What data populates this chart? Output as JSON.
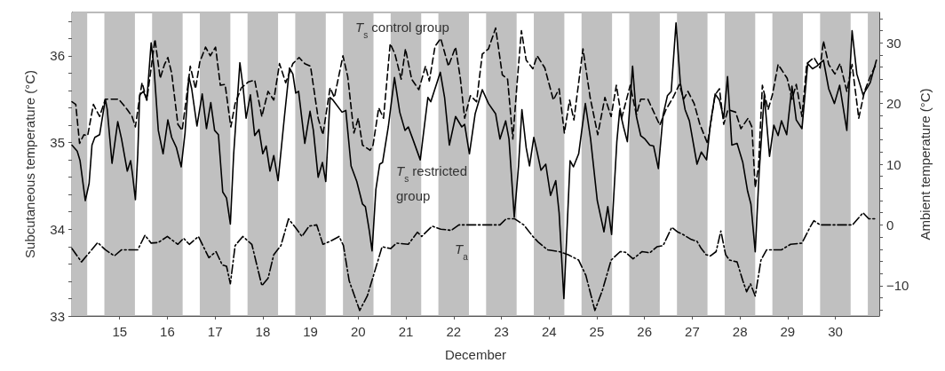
{
  "chart_data": {
    "type": "line",
    "xlabel": "December",
    "ylabel": "Subcutaneous temperature (°C)",
    "y2label": "Ambient temperature (°C)",
    "xlim": [
      14,
      30.92
    ],
    "xticks": [
      15,
      16,
      17,
      18,
      19,
      20,
      21,
      22,
      23,
      24,
      25,
      26,
      27,
      28,
      29,
      30
    ],
    "ylim": [
      33,
      36.5
    ],
    "yticks": [
      33,
      {
        "value": 33.2,
        "label": null
      },
      {
        "value": 33.4,
        "label": null
      },
      {
        "value": 33.6,
        "label": null
      },
      {
        "value": 33.8,
        "label": null
      },
      34,
      {
        "value": 34.2,
        "label": null
      },
      {
        "value": 34.4,
        "label": null
      },
      {
        "value": 34.6,
        "label": null
      },
      {
        "value": 34.8,
        "label": null
      },
      35,
      {
        "value": 35.2,
        "label": null
      },
      {
        "value": 35.4,
        "label": null
      },
      {
        "value": 35.6,
        "label": null
      },
      {
        "value": 35.8,
        "label": null
      },
      36,
      {
        "value": 36.2,
        "label": null
      },
      {
        "value": 36.4,
        "label": null
      }
    ],
    "y2lim": [
      -15,
      35
    ],
    "y2ticks": [
      {
        "value": -14,
        "label": null
      },
      {
        "value": -12,
        "label": null
      },
      {
        "value": -10,
        "label": "−10"
      },
      {
        "value": -8,
        "label": null
      },
      {
        "value": -6,
        "label": null
      },
      {
        "value": -4,
        "label": null
      },
      {
        "value": -2,
        "label": null
      },
      0,
      {
        "value": 2,
        "label": null
      },
      {
        "value": 4,
        "label": null
      },
      {
        "value": 6,
        "label": null
      },
      {
        "value": 8,
        "label": null
      },
      10,
      {
        "value": 12,
        "label": null
      },
      {
        "value": 14,
        "label": null
      },
      {
        "value": 16,
        "label": null
      },
      {
        "value": 18,
        "label": null
      },
      20,
      {
        "value": 22,
        "label": null
      },
      {
        "value": 24,
        "label": null
      },
      {
        "value": 26,
        "label": null
      },
      {
        "value": 28,
        "label": null
      },
      30,
      {
        "value": 32,
        "label": null
      },
      {
        "value": 34,
        "label": null
      }
    ],
    "grid": false,
    "bands": [
      {
        "axis": "x",
        "from": 14,
        "to": 14.32,
        "color": "#c0c0c0"
      },
      {
        "axis": "x",
        "from": 14.68,
        "to": 15.32,
        "color": "#c0c0c0"
      },
      {
        "axis": "x",
        "from": 15.68,
        "to": 16.32,
        "color": "#c0c0c0"
      },
      {
        "axis": "x",
        "from": 16.68,
        "to": 17.32,
        "color": "#c0c0c0"
      },
      {
        "axis": "x",
        "from": 17.68,
        "to": 18.32,
        "color": "#c0c0c0"
      },
      {
        "axis": "x",
        "from": 18.68,
        "to": 19.32,
        "color": "#c0c0c0"
      },
      {
        "axis": "x",
        "from": 19.68,
        "to": 20.32,
        "color": "#c0c0c0"
      },
      {
        "axis": "x",
        "from": 20.68,
        "to": 21.32,
        "color": "#c0c0c0"
      },
      {
        "axis": "x",
        "from": 21.68,
        "to": 22.32,
        "color": "#c0c0c0"
      },
      {
        "axis": "x",
        "from": 22.68,
        "to": 23.32,
        "color": "#c0c0c0"
      },
      {
        "axis": "x",
        "from": 23.68,
        "to": 24.32,
        "color": "#c0c0c0"
      },
      {
        "axis": "x",
        "from": 24.68,
        "to": 25.32,
        "color": "#c0c0c0"
      },
      {
        "axis": "x",
        "from": 25.68,
        "to": 26.32,
        "color": "#c0c0c0"
      },
      {
        "axis": "x",
        "from": 26.68,
        "to": 27.32,
        "color": "#c0c0c0"
      },
      {
        "axis": "x",
        "from": 27.68,
        "to": 28.32,
        "color": "#c0c0c0"
      },
      {
        "axis": "x",
        "from": 28.68,
        "to": 29.32,
        "color": "#c0c0c0"
      },
      {
        "axis": "x",
        "from": 29.68,
        "to": 30.32,
        "color": "#c0c0c0"
      },
      {
        "axis": "x",
        "from": 30.68,
        "to": 30.92,
        "color": "#c0c0c0"
      }
    ],
    "series": [
      {
        "name": "T$_{s}$ control group",
        "color": "#000000",
        "line_style": "dashed",
        "x": [
          14.0,
          14.08,
          14.16,
          14.25,
          14.33,
          14.45,
          14.58,
          14.7,
          14.85,
          14.98,
          15.16,
          15.26,
          15.33,
          15.41,
          15.47,
          15.57,
          15.66,
          15.74,
          15.85,
          15.94,
          16.01,
          16.09,
          16.22,
          16.31,
          16.4,
          16.48,
          16.59,
          16.68,
          16.8,
          16.9,
          17.01,
          17.11,
          17.21,
          17.33,
          17.42,
          17.55,
          17.7,
          17.83,
          17.98,
          18.11,
          18.23,
          18.35,
          18.48,
          18.63,
          18.76,
          18.88,
          19.0,
          19.16,
          19.26,
          19.41,
          19.5,
          19.68,
          19.78,
          19.91,
          20.0,
          20.09,
          20.25,
          20.31,
          20.43,
          20.53,
          20.67,
          20.77,
          20.9,
          20.99,
          21.12,
          21.27,
          21.41,
          21.49,
          21.61,
          21.73,
          21.89,
          22.04,
          22.14,
          22.23,
          22.35,
          22.48,
          22.6,
          22.73,
          22.88,
          23.02,
          23.13,
          23.24,
          23.33,
          23.42,
          23.52,
          23.66,
          23.75,
          23.91,
          24.09,
          24.21,
          24.32,
          24.43,
          24.52,
          24.71,
          24.86,
          25.02,
          25.17,
          25.3,
          25.41,
          25.52,
          25.7,
          25.83,
          25.92,
          26.07,
          26.32,
          26.45,
          26.6,
          26.73,
          26.82,
          26.91,
          27.04,
          27.16,
          27.32,
          27.48,
          27.57,
          27.66,
          27.75,
          27.91,
          28.02,
          28.17,
          28.25,
          28.32,
          28.39,
          28.47,
          28.59,
          28.68,
          28.8,
          28.99,
          29.09,
          29.18,
          29.3,
          29.4,
          29.55,
          29.68,
          29.75,
          29.86,
          29.99,
          30.1,
          30.24,
          30.35,
          30.49,
          30.61,
          30.73,
          30.85
        ],
        "values": [
          35.47,
          35.44,
          34.99,
          35.09,
          35.08,
          35.44,
          35.3,
          35.5,
          35.5,
          35.5,
          35.38,
          35.3,
          35.18,
          35.49,
          35.69,
          35.49,
          35.86,
          36.19,
          35.74,
          35.9,
          35.98,
          35.8,
          35.21,
          35.14,
          35.52,
          35.88,
          35.62,
          35.93,
          36.1,
          36.0,
          36.1,
          35.66,
          35.67,
          35.18,
          35.45,
          35.63,
          35.7,
          35.72,
          35.3,
          35.59,
          35.49,
          35.91,
          35.69,
          35.91,
          35.98,
          35.91,
          35.88,
          35.28,
          35.09,
          35.63,
          35.52,
          36.0,
          35.76,
          35.11,
          35.28,
          34.97,
          34.91,
          34.97,
          35.4,
          35.28,
          36.14,
          36.02,
          35.73,
          36.08,
          35.73,
          35.61,
          35.88,
          35.71,
          36.11,
          36.2,
          35.88,
          36.1,
          35.74,
          35.28,
          35.54,
          35.47,
          36.02,
          36.08,
          36.32,
          35.78,
          35.73,
          35.04,
          35.69,
          36.29,
          35.95,
          35.85,
          36.0,
          35.86,
          35.49,
          35.62,
          35.11,
          35.49,
          35.26,
          36.08,
          35.52,
          35.09,
          35.52,
          35.3,
          35.66,
          35.28,
          35.66,
          35.32,
          35.5,
          35.5,
          35.2,
          35.38,
          35.52,
          35.67,
          35.5,
          35.59,
          35.45,
          35.21,
          34.99,
          35.55,
          35.62,
          35.21,
          35.38,
          35.35,
          35.16,
          35.28,
          35.18,
          34.48,
          34.73,
          35.66,
          35.38,
          35.55,
          35.9,
          35.74,
          35.5,
          35.67,
          35.3,
          35.91,
          35.98,
          35.86,
          36.17,
          35.9,
          35.79,
          35.91,
          35.59,
          35.9,
          35.28,
          35.59,
          35.76,
          35.9
        ]
      },
      {
        "name": "T$_{s}$ restricted group",
        "color": "#000000",
        "line_style": "solid",
        "x": [
          14.0,
          14.11,
          14.17,
          14.28,
          14.36,
          14.42,
          14.48,
          14.58,
          14.7,
          14.74,
          14.84,
          14.96,
          15.04,
          15.16,
          15.23,
          15.27,
          15.33,
          15.38,
          15.42,
          15.5,
          15.57,
          15.66,
          15.72,
          15.81,
          15.91,
          16.01,
          16.09,
          16.19,
          16.29,
          16.37,
          16.45,
          16.51,
          16.62,
          16.73,
          16.82,
          16.91,
          16.99,
          17.07,
          17.16,
          17.24,
          17.32,
          17.39,
          17.52,
          17.59,
          17.65,
          17.74,
          17.83,
          17.92,
          18.0,
          18.07,
          18.15,
          18.23,
          18.32,
          18.45,
          18.56,
          18.63,
          18.69,
          18.75,
          18.88,
          18.99,
          19.06,
          19.16,
          19.25,
          19.32,
          19.41,
          19.47,
          19.66,
          19.74,
          19.85,
          19.97,
          20.09,
          20.15,
          20.23,
          20.29,
          20.37,
          20.45,
          20.51,
          20.63,
          20.76,
          20.87,
          20.98,
          21.05,
          21.15,
          21.3,
          21.46,
          21.52,
          21.72,
          21.81,
          21.91,
          22.04,
          22.17,
          22.23,
          22.33,
          22.45,
          22.6,
          22.73,
          22.88,
          22.97,
          23.09,
          23.16,
          23.27,
          23.36,
          23.43,
          23.52,
          23.59,
          23.68,
          23.75,
          23.83,
          23.93,
          24.03,
          24.14,
          24.21,
          24.31,
          24.37,
          24.44,
          24.51,
          24.62,
          24.76,
          24.87,
          25.01,
          25.15,
          25.23,
          25.31,
          25.42,
          25.48,
          25.56,
          25.64,
          25.75,
          25.83,
          25.92,
          26.01,
          26.11,
          26.19,
          26.29,
          26.39,
          26.48,
          26.56,
          26.66,
          26.75,
          26.85,
          26.94,
          27.1,
          27.19,
          27.3,
          27.38,
          27.48,
          27.57,
          27.66,
          27.74,
          27.83,
          27.94,
          28.06,
          28.16,
          28.23,
          28.32,
          28.4,
          28.51,
          28.62,
          28.71,
          28.8,
          28.87,
          28.98,
          29.09,
          29.18,
          29.3,
          29.42,
          29.52,
          29.61,
          29.75,
          29.86,
          29.98,
          30.09,
          30.24,
          30.35,
          30.45,
          30.58,
          30.73,
          30.86
        ],
        "values": [
          34.97,
          34.9,
          34.79,
          34.33,
          34.53,
          34.97,
          35.06,
          35.09,
          35.5,
          35.38,
          34.76,
          35.24,
          35.04,
          34.67,
          34.79,
          34.63,
          34.34,
          34.87,
          35.55,
          35.59,
          35.49,
          36.15,
          35.86,
          35.14,
          34.87,
          35.26,
          35.06,
          34.94,
          34.72,
          35.11,
          35.76,
          35.62,
          35.19,
          35.56,
          35.16,
          35.46,
          35.14,
          35.09,
          34.43,
          34.36,
          34.06,
          34.87,
          35.92,
          35.62,
          35.28,
          35.55,
          35.08,
          35.15,
          34.87,
          34.96,
          34.67,
          34.85,
          34.56,
          35.28,
          35.86,
          35.79,
          35.57,
          35.59,
          34.99,
          35.36,
          35.14,
          34.6,
          34.77,
          34.55,
          35.52,
          35.49,
          35.35,
          35.37,
          34.73,
          34.55,
          34.29,
          34.26,
          33.99,
          33.75,
          34.46,
          34.75,
          34.77,
          35.18,
          35.75,
          35.35,
          35.14,
          35.18,
          35.03,
          34.8,
          35.52,
          35.47,
          35.81,
          35.52,
          34.97,
          35.3,
          35.18,
          35.21,
          34.87,
          35.33,
          35.61,
          35.45,
          35.33,
          35.04,
          35.25,
          35.04,
          34.14,
          34.73,
          35.38,
          34.94,
          34.73,
          35.06,
          34.89,
          34.68,
          34.75,
          34.39,
          34.56,
          34.19,
          33.2,
          33.92,
          34.79,
          34.72,
          34.87,
          35.45,
          35.04,
          34.33,
          33.97,
          34.26,
          33.94,
          35.01,
          35.37,
          35.18,
          35.01,
          35.88,
          35.3,
          35.08,
          35.04,
          34.97,
          34.96,
          34.7,
          35.32,
          35.54,
          35.59,
          36.38,
          35.69,
          35.38,
          35.25,
          34.75,
          34.89,
          34.8,
          35.21,
          35.56,
          35.49,
          35.28,
          35.76,
          34.97,
          34.99,
          34.77,
          34.44,
          34.29,
          33.74,
          34.63,
          35.55,
          34.84,
          35.2,
          35.08,
          35.25,
          35.09,
          35.65,
          35.26,
          35.16,
          35.91,
          35.85,
          35.88,
          35.95,
          35.62,
          35.45,
          35.66,
          35.14,
          36.29,
          35.79,
          35.55,
          35.69,
          35.95
        ]
      },
      {
        "name": "T$_{a}$",
        "color": "#000000",
        "line_style": "dashdot",
        "axis": "y2",
        "x": [
          14.0,
          14.2,
          14.36,
          14.54,
          14.7,
          14.89,
          15.04,
          15.38,
          15.53,
          15.66,
          15.81,
          16.0,
          16.22,
          16.34,
          16.46,
          16.65,
          16.87,
          17.02,
          17.15,
          17.24,
          17.32,
          17.42,
          17.58,
          17.77,
          17.98,
          18.11,
          18.23,
          18.38,
          18.54,
          18.69,
          18.82,
          18.97,
          19.13,
          19.26,
          19.41,
          19.6,
          19.69,
          19.81,
          20.03,
          20.19,
          20.34,
          20.5,
          20.68,
          20.8,
          21.05,
          21.24,
          21.33,
          21.55,
          21.73,
          21.95,
          22.11,
          22.97,
          23.1,
          23.28,
          23.47,
          23.66,
          23.78,
          23.97,
          24.21,
          24.4,
          24.62,
          24.77,
          24.96,
          25.12,
          25.3,
          25.49,
          25.6,
          25.76,
          25.95,
          26.11,
          26.26,
          26.39,
          26.57,
          26.7,
          26.79,
          26.98,
          27.1,
          27.19,
          27.29,
          27.38,
          27.5,
          27.6,
          27.7,
          27.78,
          27.94,
          28.06,
          28.14,
          28.22,
          28.32,
          28.44,
          28.56,
          28.87,
          29.06,
          29.3,
          29.46,
          29.55,
          29.68,
          30.36,
          30.58,
          30.7,
          30.86
        ],
        "values": [
          -3.9,
          -6.1,
          -4.6,
          -2.9,
          -4.1,
          -5.1,
          -4.1,
          -4.1,
          -1.7,
          -3.0,
          -2.9,
          -1.9,
          -3.2,
          -2.2,
          -3.2,
          -1.9,
          -5.4,
          -4.4,
          -6.6,
          -6.8,
          -9.7,
          -3.4,
          -1.9,
          -3.2,
          -10.0,
          -8.8,
          -4.9,
          -3.4,
          1.0,
          -0.5,
          -1.9,
          -0.2,
          0.0,
          -3.2,
          -2.7,
          -1.9,
          -3.4,
          -9.2,
          -14.1,
          -11.7,
          -7.8,
          -3.6,
          -3.9,
          -3.0,
          -3.2,
          -1.2,
          -1.9,
          -0.2,
          -0.7,
          -0.9,
          0.0,
          0.0,
          1.0,
          1.0,
          0.0,
          -1.9,
          -2.9,
          -4.1,
          -4.4,
          -4.9,
          -5.8,
          -8.3,
          -14.1,
          -10.7,
          -5.8,
          -4.4,
          -4.5,
          -5.6,
          -4.4,
          -4.6,
          -3.6,
          -3.4,
          -0.4,
          -1.2,
          -1.5,
          -2.4,
          -2.7,
          -3.9,
          -4.9,
          -5.1,
          -4.4,
          -1.0,
          -4.9,
          -5.8,
          -6.1,
          -9.2,
          -11.0,
          -9.7,
          -11.7,
          -5.8,
          -4.1,
          -4.1,
          -3.2,
          -3.0,
          -0.5,
          0.7,
          0.0,
          0.0,
          2.0,
          1.0,
          1.0
        ]
      }
    ]
  }
}
